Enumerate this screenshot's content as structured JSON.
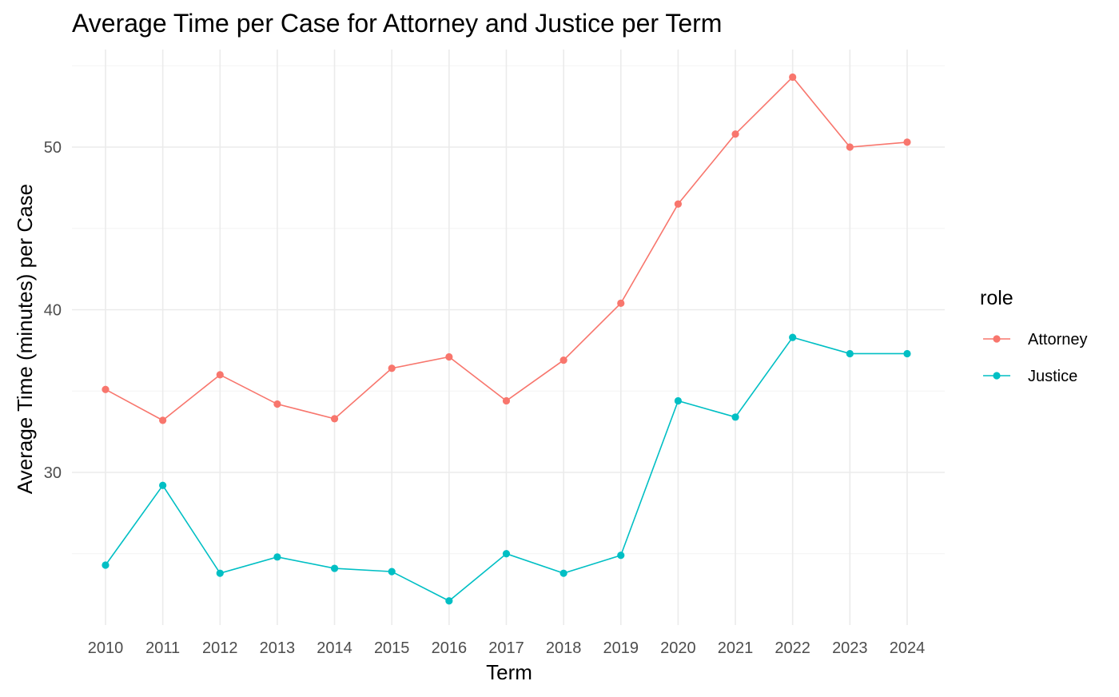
{
  "chart_data": {
    "type": "line",
    "title": "Average Time per Case for Attorney and Justice per Term",
    "xlabel": "Term",
    "ylabel": "Average Time (minutes) per Case",
    "x": [
      "2010",
      "2011",
      "2012",
      "2013",
      "2014",
      "2015",
      "2016",
      "2017",
      "2018",
      "2019",
      "2020",
      "2021",
      "2022",
      "2023",
      "2024"
    ],
    "ylim": [
      20.5,
      56
    ],
    "yticks": [
      30,
      40,
      50
    ],
    "grid": true,
    "legend": {
      "title": "role",
      "position": "right"
    },
    "series": [
      {
        "name": "Attorney",
        "color": "#F8766D",
        "values": [
          35.1,
          33.2,
          36.0,
          34.2,
          33.3,
          36.4,
          37.1,
          34.4,
          36.9,
          40.4,
          46.5,
          50.8,
          54.3,
          50.0,
          50.3
        ]
      },
      {
        "name": "Justice",
        "color": "#00BFC4",
        "values": [
          24.3,
          29.2,
          23.8,
          24.8,
          24.1,
          23.9,
          22.1,
          25.0,
          23.8,
          24.9,
          34.4,
          33.4,
          38.3,
          37.3,
          37.3
        ]
      }
    ]
  }
}
